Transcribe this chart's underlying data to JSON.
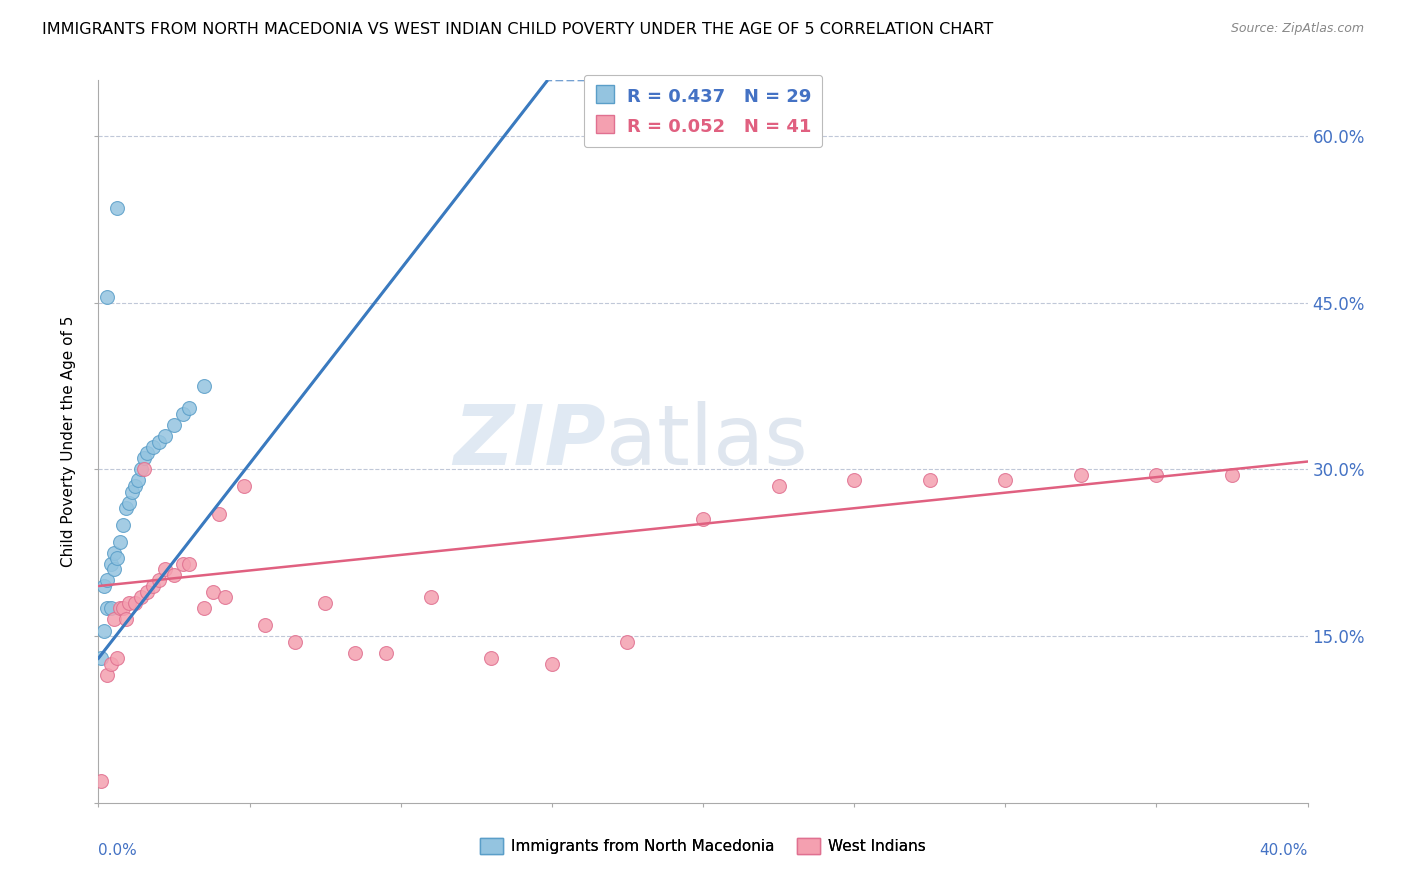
{
  "title": "IMMIGRANTS FROM NORTH MACEDONIA VS WEST INDIAN CHILD POVERTY UNDER THE AGE OF 5 CORRELATION CHART",
  "source": "Source: ZipAtlas.com",
  "ylabel": "Child Poverty Under the Age of 5",
  "xmin": 0.0,
  "xmax": 0.4,
  "ymin": 0.0,
  "ymax": 0.65,
  "yticks": [
    0.0,
    0.15,
    0.3,
    0.45,
    0.6
  ],
  "ytick_labels": [
    "",
    "15.0%",
    "30.0%",
    "45.0%",
    "60.0%"
  ],
  "watermark_zip": "ZIP",
  "watermark_atlas": "atlas",
  "blue_R": 0.437,
  "blue_N": 29,
  "pink_R": 0.052,
  "pink_N": 41,
  "blue_color": "#94c4e0",
  "pink_color": "#f4a0b0",
  "blue_edge_color": "#5a9ec8",
  "pink_edge_color": "#e07090",
  "blue_line_color": "#3a7abf",
  "pink_line_color": "#e06080",
  "legend_label_blue": "Immigrants from North Macedonia",
  "legend_label_pink": "West Indians",
  "blue_scatter_x": [
    0.001,
    0.002,
    0.002,
    0.003,
    0.003,
    0.004,
    0.004,
    0.005,
    0.005,
    0.006,
    0.007,
    0.008,
    0.009,
    0.01,
    0.011,
    0.012,
    0.013,
    0.014,
    0.015,
    0.016,
    0.018,
    0.02,
    0.022,
    0.025,
    0.028,
    0.03,
    0.035,
    0.003,
    0.006
  ],
  "blue_scatter_y": [
    0.13,
    0.155,
    0.195,
    0.175,
    0.2,
    0.175,
    0.215,
    0.21,
    0.225,
    0.22,
    0.235,
    0.25,
    0.265,
    0.27,
    0.28,
    0.285,
    0.29,
    0.3,
    0.31,
    0.315,
    0.32,
    0.325,
    0.33,
    0.34,
    0.35,
    0.355,
    0.375,
    0.455,
    0.535
  ],
  "pink_scatter_x": [
    0.001,
    0.003,
    0.005,
    0.007,
    0.008,
    0.01,
    0.012,
    0.014,
    0.016,
    0.018,
    0.02,
    0.022,
    0.025,
    0.028,
    0.03,
    0.035,
    0.038,
    0.042,
    0.048,
    0.055,
    0.065,
    0.075,
    0.085,
    0.095,
    0.11,
    0.13,
    0.15,
    0.175,
    0.2,
    0.225,
    0.25,
    0.275,
    0.3,
    0.325,
    0.35,
    0.375,
    0.004,
    0.006,
    0.009,
    0.015,
    0.04
  ],
  "pink_scatter_y": [
    0.02,
    0.115,
    0.165,
    0.175,
    0.175,
    0.18,
    0.18,
    0.185,
    0.19,
    0.195,
    0.2,
    0.21,
    0.205,
    0.215,
    0.215,
    0.175,
    0.19,
    0.185,
    0.285,
    0.16,
    0.145,
    0.18,
    0.135,
    0.135,
    0.185,
    0.13,
    0.125,
    0.145,
    0.255,
    0.285,
    0.29,
    0.29,
    0.29,
    0.295,
    0.295,
    0.295,
    0.125,
    0.13,
    0.165,
    0.3,
    0.26
  ],
  "blue_line_slope": 3.5,
  "blue_line_intercept": 0.13,
  "pink_line_slope": 0.28,
  "pink_line_intercept": 0.195
}
